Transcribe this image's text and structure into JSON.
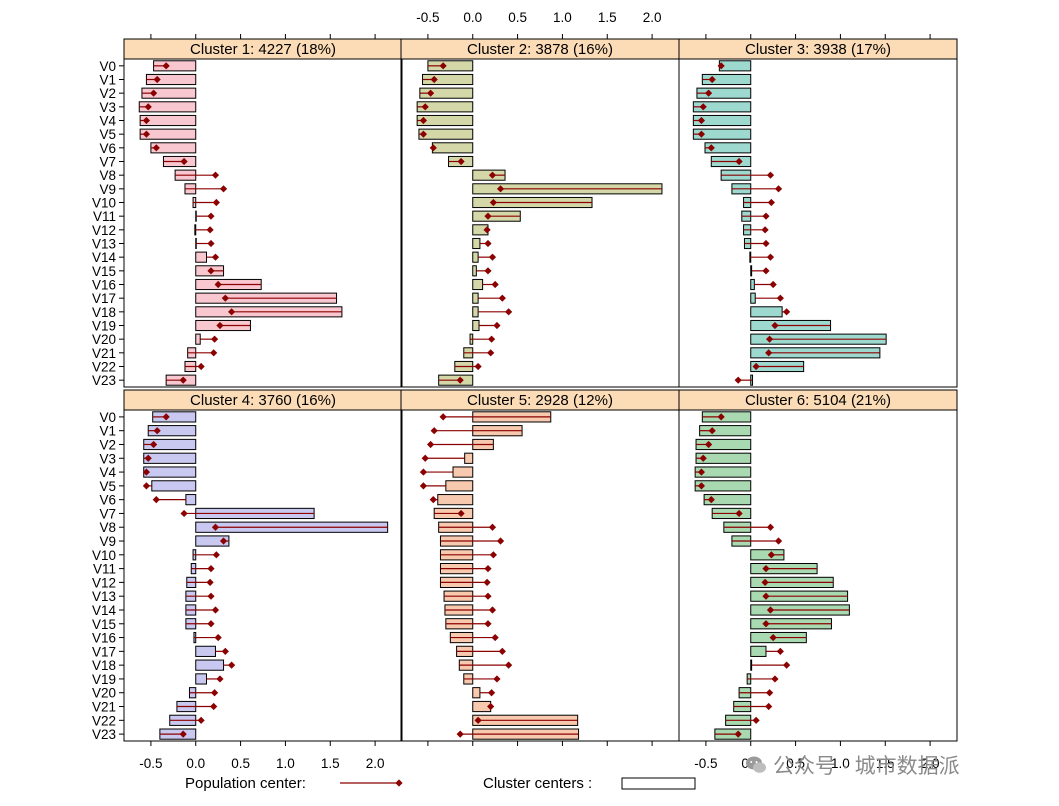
{
  "chart_data": {
    "type": "bar",
    "layout": "2 rows x 3 columns trellis of horizontal bar charts with population-center lollipops",
    "variables": [
      "V0",
      "V1",
      "V2",
      "V3",
      "V4",
      "V5",
      "V6",
      "V7",
      "V8",
      "V9",
      "V10",
      "V11",
      "V12",
      "V13",
      "V14",
      "V15",
      "V16",
      "V17",
      "V18",
      "V19",
      "V20",
      "V21",
      "V22",
      "V23"
    ],
    "xlim": [
      -0.8,
      2.3
    ],
    "xticks": [
      "-0.5",
      "0.0",
      "0.5",
      "1.0",
      "1.5",
      "2.0"
    ],
    "xtick_values": [
      -0.5,
      0,
      0.5,
      1,
      1.5,
      2
    ],
    "population_center": [
      -0.33,
      -0.43,
      -0.47,
      -0.53,
      -0.55,
      -0.55,
      -0.44,
      -0.13,
      0.22,
      0.31,
      0.23,
      0.17,
      0.16,
      0.17,
      0.22,
      0.17,
      0.25,
      0.33,
      0.4,
      0.27,
      0.21,
      0.2,
      0.06,
      -0.14
    ],
    "panels": [
      {
        "title": "Cluster 1: 4227 (18%)",
        "color": "#f9c7cf",
        "values": [
          -0.47,
          -0.55,
          -0.6,
          -0.63,
          -0.62,
          -0.62,
          -0.5,
          -0.36,
          -0.23,
          -0.12,
          -0.03,
          0.0,
          -0.01,
          0.0,
          0.12,
          0.31,
          0.73,
          1.57,
          1.63,
          0.61,
          0.05,
          -0.09,
          -0.12,
          -0.33
        ]
      },
      {
        "title": "Cluster 2: 3878 (16%)",
        "color": "#d4d8a8",
        "values": [
          -0.5,
          -0.56,
          -0.59,
          -0.62,
          -0.62,
          -0.6,
          -0.45,
          -0.27,
          0.36,
          2.11,
          1.33,
          0.53,
          0.17,
          0.08,
          0.06,
          0.04,
          0.11,
          0.06,
          0.06,
          0.07,
          -0.03,
          -0.1,
          -0.2,
          -0.38
        ]
      },
      {
        "title": "Cluster 3: 3938 (17%)",
        "color": "#9ed9cf",
        "values": [
          -0.35,
          -0.54,
          -0.6,
          -0.64,
          -0.64,
          -0.64,
          -0.51,
          -0.44,
          -0.33,
          -0.21,
          -0.08,
          -0.1,
          -0.08,
          -0.07,
          -0.01,
          0.01,
          0.04,
          0.05,
          0.35,
          0.89,
          1.51,
          1.44,
          0.59,
          0.02
        ]
      },
      {
        "title": "Cluster 4: 3760 (16%)",
        "color": "#c9c8f0",
        "values": [
          -0.48,
          -0.53,
          -0.58,
          -0.58,
          -0.58,
          -0.49,
          -0.11,
          1.32,
          2.14,
          0.37,
          -0.03,
          -0.05,
          -0.1,
          -0.11,
          -0.11,
          -0.11,
          -0.02,
          0.22,
          0.31,
          0.12,
          -0.07,
          -0.21,
          -0.29,
          -0.4
        ]
      },
      {
        "title": "Cluster 5: 2928 (12%)",
        "color": "#f7c9ae",
        "values": [
          0.87,
          0.55,
          0.23,
          -0.09,
          -0.22,
          -0.3,
          -0.39,
          -0.43,
          -0.38,
          -0.36,
          -0.36,
          -0.36,
          -0.36,
          -0.32,
          -0.31,
          -0.3,
          -0.25,
          -0.18,
          -0.15,
          -0.1,
          0.08,
          0.2,
          1.17,
          1.18
        ]
      },
      {
        "title": "Cluster 6: 5104 (21%)",
        "color": "#a8d9b0",
        "values": [
          -0.54,
          -0.57,
          -0.61,
          -0.61,
          -0.62,
          -0.62,
          -0.52,
          -0.43,
          -0.3,
          -0.21,
          0.37,
          0.74,
          0.92,
          1.08,
          1.1,
          0.9,
          0.62,
          0.17,
          0.01,
          -0.04,
          -0.13,
          -0.19,
          -0.28,
          -0.4
        ]
      }
    ],
    "legend": {
      "population_label": "Population center:",
      "cluster_label": "Cluster centers :"
    }
  },
  "watermark": {
    "text": "公众号 · 城市数据派"
  }
}
